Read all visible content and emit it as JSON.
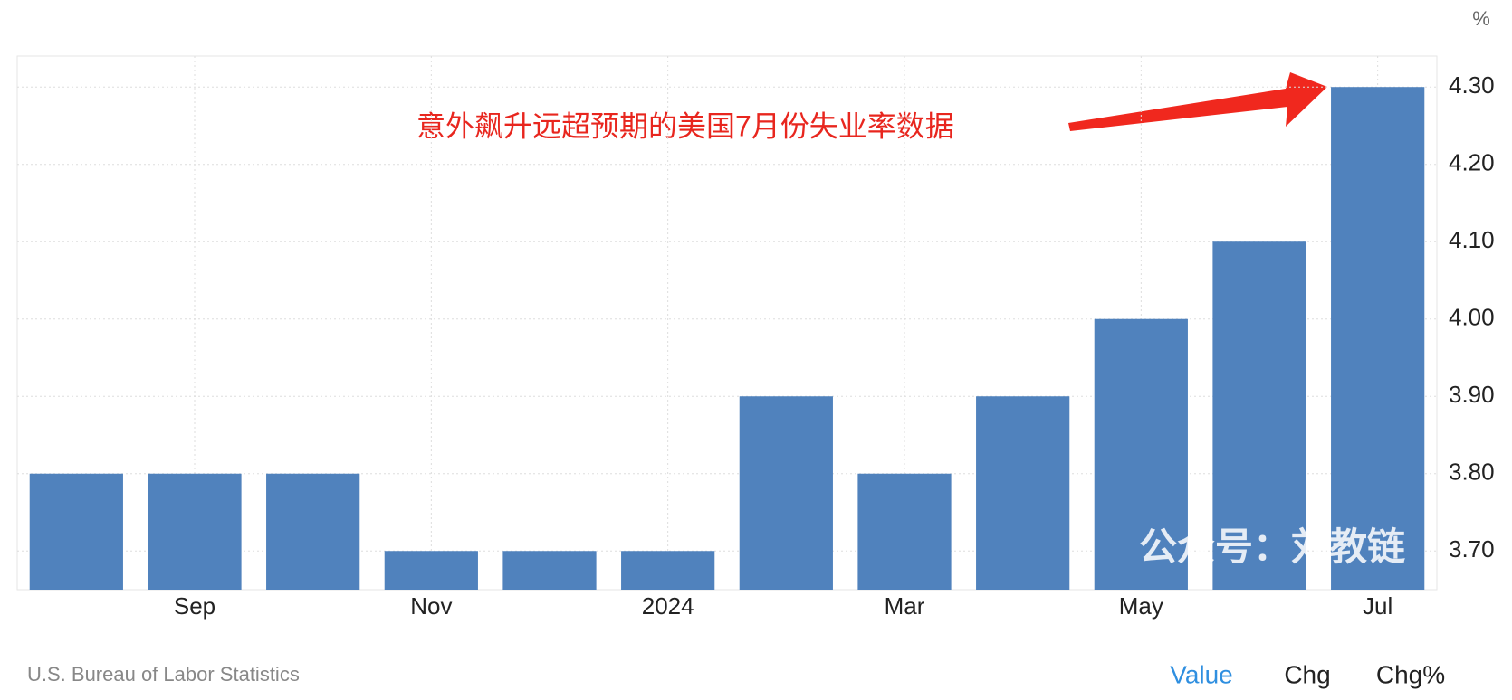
{
  "chart_data": {
    "type": "bar",
    "unit": "%",
    "annotation": "意外飙升远超预期的美国7月份失业率数据",
    "watermark": "公众号：刘教链",
    "source": "U.S. Bureau of Labor Statistics",
    "tabs": [
      "Value",
      "Chg",
      "Chg%"
    ],
    "categories": [
      null,
      "Sep",
      null,
      "Nov",
      null,
      "2024",
      null,
      "Mar",
      null,
      "May",
      null,
      "Jul"
    ],
    "values": [
      3.8,
      3.8,
      3.8,
      3.7,
      3.7,
      3.7,
      3.9,
      3.8,
      3.9,
      4.0,
      4.1,
      4.3
    ],
    "color": "#5082bd",
    "ylim": [
      3.65,
      4.34
    ],
    "yticks": [
      {
        "value": 3.7,
        "label": "3.70"
      },
      {
        "value": 3.8,
        "label": "3.80"
      },
      {
        "value": 3.9,
        "label": "3.90"
      },
      {
        "value": 4.0,
        "label": "4.00"
      },
      {
        "value": 4.1,
        "label": "4.10"
      },
      {
        "value": 4.2,
        "label": "4.20"
      },
      {
        "value": 4.3,
        "label": "4.30"
      }
    ],
    "grid": true
  }
}
